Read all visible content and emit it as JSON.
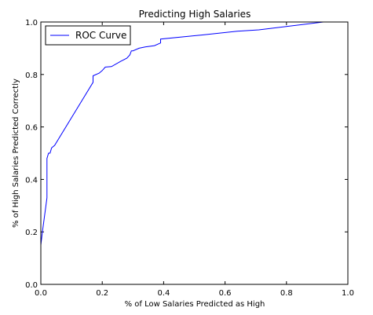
{
  "chart_data": {
    "type": "line",
    "title": "Predicting High Salaries",
    "xlabel": "% of Low Salaries Predicted as High",
    "ylabel": "% of High Salaries Predicted Correctly",
    "xlim": [
      0,
      1
    ],
    "ylim": [
      0,
      1
    ],
    "xticks": [
      "0.0",
      "0.2",
      "0.4",
      "0.6",
      "0.8",
      "1.0"
    ],
    "yticks": [
      "0.0",
      "0.2",
      "0.4",
      "0.6",
      "0.8",
      "1.0"
    ],
    "grid": false,
    "legend_position": "top-left",
    "series": [
      {
        "name": "ROC Curve",
        "color": "#0000ff",
        "x": [
          0.0,
          0.0,
          0.005,
          0.02,
          0.02,
          0.025,
          0.03,
          0.035,
          0.045,
          0.17,
          0.17,
          0.19,
          0.2,
          0.21,
          0.23,
          0.26,
          0.28,
          0.29,
          0.295,
          0.3,
          0.32,
          0.34,
          0.37,
          0.39,
          0.39,
          0.52,
          0.64,
          0.71,
          0.92
        ],
        "y": [
          0.0,
          0.15,
          0.2,
          0.33,
          0.48,
          0.5,
          0.5,
          0.52,
          0.53,
          0.77,
          0.795,
          0.805,
          0.815,
          0.828,
          0.83,
          0.85,
          0.862,
          0.875,
          0.89,
          0.89,
          0.9,
          0.905,
          0.91,
          0.92,
          0.935,
          0.95,
          0.965,
          0.97,
          1.0
        ]
      }
    ]
  }
}
